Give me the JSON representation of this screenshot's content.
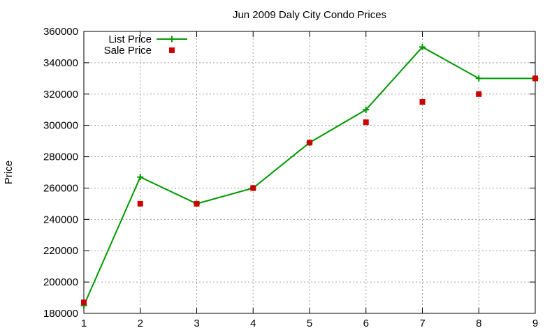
{
  "chart_data": {
    "type": "line",
    "title": "Jun 2009 Daly City Condo Prices",
    "xlabel": "",
    "ylabel": "Price",
    "xlim": [
      1,
      9
    ],
    "ylim": [
      180000,
      360000
    ],
    "x_ticks": [
      1,
      2,
      3,
      4,
      5,
      6,
      7,
      8,
      9
    ],
    "y_ticks": [
      180000,
      200000,
      220000,
      240000,
      260000,
      280000,
      300000,
      320000,
      340000,
      360000
    ],
    "grid": true,
    "legend_position": "top-left",
    "series": [
      {
        "name": "List Price",
        "style": "linespoints",
        "color": "#009900",
        "x": [
          1,
          2,
          3,
          4,
          5,
          6,
          7,
          8,
          9
        ],
        "values": [
          185000,
          267000,
          250000,
          260000,
          289000,
          310000,
          350000,
          330000,
          330000
        ]
      },
      {
        "name": "Sale Price",
        "style": "points",
        "color": "#cc0000",
        "x": [
          1,
          2,
          3,
          4,
          5,
          6,
          7,
          8,
          9
        ],
        "values": [
          187000,
          250000,
          250000,
          260000,
          289000,
          302000,
          315000,
          320000,
          330000
        ]
      }
    ]
  }
}
